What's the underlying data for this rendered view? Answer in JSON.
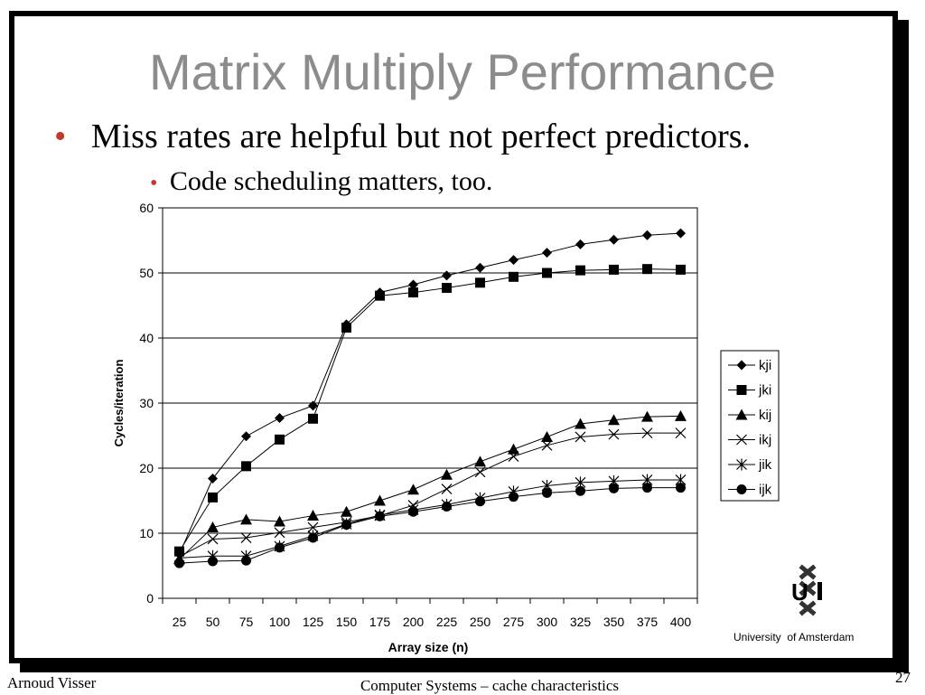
{
  "slide": {
    "title": "Matrix Multiply Performance",
    "bullet1": "Miss rates are helpful but not perfect predictors.",
    "bullet2": "Code scheduling matters, too.",
    "bullet_glyph": "•",
    "footer_left": "Arnoud Visser",
    "footer_center": "Computer Systems – cache characteristics",
    "page_number": "27",
    "logo_text": "University  of Amsterdam",
    "logo_glyph": "UvA-logo-icon",
    "bullet_color": "#c0392b",
    "title_color": "#8c8c8c"
  },
  "chart_data": {
    "type": "line",
    "title": "",
    "xlabel": "Array size (n)",
    "ylabel": "Cycles/iteration",
    "ylim": [
      0,
      60
    ],
    "yticks": [
      0,
      10,
      20,
      30,
      40,
      50,
      60
    ],
    "grid": true,
    "legend_position": "right",
    "categories": [
      "25",
      "50",
      "75",
      "100",
      "125",
      "150",
      "175",
      "200",
      "225",
      "250",
      "275",
      "300",
      "325",
      "350",
      "375",
      "400"
    ],
    "series": [
      {
        "name": "kji",
        "marker": "diamond",
        "values": [
          6.8,
          18.4,
          24.9,
          27.7,
          29.6,
          42.1,
          47.0,
          48.2,
          49.6,
          50.8,
          52.0,
          53.1,
          54.4,
          55.1,
          55.8,
          56.1
        ]
      },
      {
        "name": "jki",
        "marker": "square",
        "values": [
          7.2,
          15.5,
          20.3,
          24.4,
          27.6,
          41.6,
          46.5,
          47.0,
          47.7,
          48.5,
          49.4,
          50.0,
          50.4,
          50.5,
          50.6,
          50.5
        ]
      },
      {
        "name": "kij",
        "marker": "triangle",
        "values": [
          6.0,
          10.9,
          12.1,
          11.8,
          12.7,
          13.3,
          15.0,
          16.7,
          19.0,
          21.0,
          22.9,
          24.8,
          26.8,
          27.4,
          27.9,
          28.0
        ]
      },
      {
        "name": "ikj",
        "marker": "x",
        "values": [
          6.4,
          9.1,
          9.3,
          10.1,
          10.9,
          11.7,
          12.7,
          14.3,
          16.8,
          19.4,
          21.8,
          23.5,
          24.8,
          25.2,
          25.4,
          25.4
        ]
      },
      {
        "name": "jik",
        "marker": "star",
        "values": [
          6.2,
          6.5,
          6.5,
          8.0,
          9.6,
          11.4,
          12.8,
          13.6,
          14.4,
          15.4,
          16.4,
          17.3,
          17.8,
          18.0,
          18.2,
          18.2
        ]
      },
      {
        "name": "ijk",
        "marker": "circle",
        "values": [
          5.4,
          5.7,
          5.8,
          7.8,
          9.3,
          11.3,
          12.6,
          13.3,
          14.1,
          14.9,
          15.6,
          16.2,
          16.5,
          16.9,
          17.0,
          17.0
        ]
      }
    ]
  }
}
